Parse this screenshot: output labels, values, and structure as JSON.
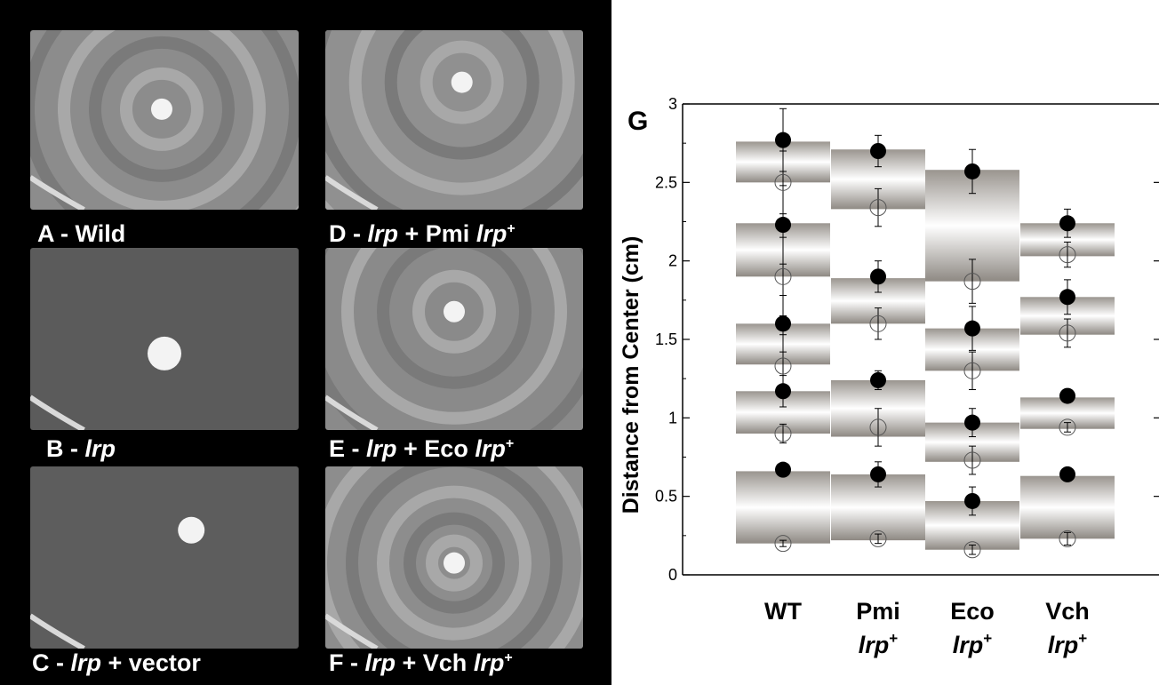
{
  "panels": [
    {
      "letter": "A",
      "sep": " - ",
      "gene": "",
      "plasmid": "Wild",
      "plasmid_gene": "",
      "superscript": ""
    },
    {
      "letter": "B",
      "sep": " - ",
      "gene": "lrp",
      "plasmid": "",
      "plasmid_gene": "",
      "superscript": ""
    },
    {
      "letter": "C",
      "sep": " - ",
      "gene": "lrp",
      "plasmid": " + vector",
      "plasmid_gene": "",
      "superscript": ""
    },
    {
      "letter": "D",
      "sep": " - ",
      "gene": "lrp",
      "plasmid": " + Pmi ",
      "plasmid_gene": "lrp",
      "superscript": "+"
    },
    {
      "letter": "E",
      "sep": " - ",
      "gene": "lrp",
      "plasmid": " + Eco ",
      "plasmid_gene": "lrp",
      "superscript": "+"
    },
    {
      "letter": "F",
      "sep": " - ",
      "gene": "lrp",
      "plasmid": " + Vch ",
      "plasmid_gene": "lrp",
      "superscript": "+"
    }
  ],
  "chart_data": {
    "type": "bar",
    "panel_label": "G",
    "ylabel": "Distance from Center (cm)",
    "ylim": [
      0,
      3
    ],
    "yticks": [
      0,
      0.5,
      1,
      1.5,
      2,
      2.5,
      3
    ],
    "ytick_labels": [
      "0",
      "0.5",
      "1",
      "1.5",
      "2",
      "2.5",
      "3"
    ],
    "categories": [
      {
        "name": "WT",
        "sub": "",
        "sup": ""
      },
      {
        "name": "Pmi",
        "sub": "lrp",
        "sup": "+"
      },
      {
        "name": "Eco",
        "sub": "lrp",
        "sup": "+"
      },
      {
        "name": "Vch",
        "sub": "lrp",
        "sup": "+"
      }
    ],
    "rings": [
      [
        {
          "low": 0.2,
          "high": 0.66,
          "outer": 0.67,
          "outer_err": 0.02,
          "inner": 0.2,
          "inner_err": 0.02
        },
        {
          "low": 0.9,
          "high": 1.17,
          "outer": 1.17,
          "outer_err": 0.1,
          "inner": 0.9,
          "inner_err": 0.06
        },
        {
          "low": 1.34,
          "high": 1.6,
          "outer": 1.6,
          "outer_err": 0.18,
          "inner": 1.33,
          "inner_err": 0.2
        },
        {
          "low": 1.9,
          "high": 2.24,
          "outer": 2.23,
          "outer_err": 0.25,
          "inner": 1.9,
          "inner_err": 0.25
        },
        {
          "low": 2.5,
          "high": 2.76,
          "outer": 2.77,
          "outer_err": 0.2,
          "inner": 2.5,
          "inner_err": 0.2
        }
      ],
      [
        {
          "low": 0.22,
          "high": 0.64,
          "outer": 0.64,
          "outer_err": 0.08,
          "inner": 0.23,
          "inner_err": 0.03
        },
        {
          "low": 0.88,
          "high": 1.24,
          "outer": 1.24,
          "outer_err": 0.06,
          "inner": 0.94,
          "inner_err": 0.12
        },
        {
          "low": 1.6,
          "high": 1.89,
          "outer": 1.9,
          "outer_err": 0.1,
          "inner": 1.6,
          "inner_err": 0.1
        },
        {
          "low": 2.33,
          "high": 2.71,
          "outer": 2.7,
          "outer_err": 0.1,
          "inner": 2.34,
          "inner_err": 0.12
        }
      ],
      [
        {
          "low": 0.16,
          "high": 0.47,
          "outer": 0.47,
          "outer_err": 0.09,
          "inner": 0.16,
          "inner_err": 0.03
        },
        {
          "low": 0.72,
          "high": 0.97,
          "outer": 0.97,
          "outer_err": 0.09,
          "inner": 0.73,
          "inner_err": 0.09
        },
        {
          "low": 1.3,
          "high": 1.57,
          "outer": 1.57,
          "outer_err": 0.14,
          "inner": 1.3,
          "inner_err": 0.12
        },
        {
          "low": 1.87,
          "high": 2.58,
          "outer": 2.57,
          "outer_err": 0.14,
          "inner": 1.87,
          "inner_err": 0.14
        }
      ],
      [
        {
          "low": 0.23,
          "high": 0.63,
          "outer": 0.64,
          "outer_err": 0.02,
          "inner": 0.23,
          "inner_err": 0.04
        },
        {
          "low": 0.93,
          "high": 1.13,
          "outer": 1.14,
          "outer_err": 0.02,
          "inner": 0.94,
          "inner_err": 0.03
        },
        {
          "low": 1.53,
          "high": 1.77,
          "outer": 1.77,
          "outer_err": 0.11,
          "inner": 1.54,
          "inner_err": 0.09
        },
        {
          "low": 2.03,
          "high": 2.24,
          "outer": 2.24,
          "outer_err": 0.09,
          "inner": 2.04,
          "inner_err": 0.08
        }
      ]
    ],
    "right_axis_ticks": [
      0.5,
      1,
      1.5,
      2,
      2.5
    ],
    "grid": false,
    "legend": "none"
  }
}
